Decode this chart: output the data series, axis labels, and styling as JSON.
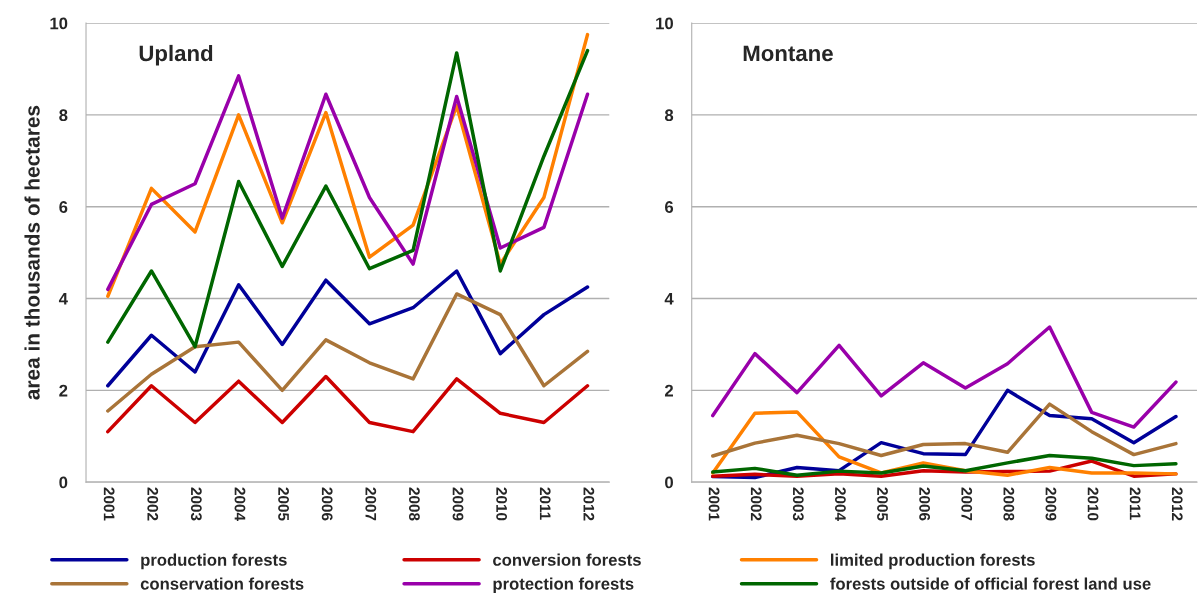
{
  "chart_data": [
    {
      "type": "line",
      "title": "Upland",
      "ylabel": "area in thousands of hectares",
      "categories": [
        "2001",
        "2002",
        "2003",
        "2004",
        "2005",
        "2006",
        "2007",
        "2008",
        "2009",
        "2010",
        "2011",
        "2012"
      ],
      "ylim": [
        0,
        10
      ],
      "yticks": [
        0,
        2,
        4,
        6,
        8,
        10
      ],
      "grid": "y",
      "legend": "bottom",
      "series": [
        {
          "name": "production forests",
          "color": "#000099",
          "values": [
            2.1,
            3.2,
            2.4,
            4.3,
            3.0,
            4.4,
            3.45,
            3.8,
            4.6,
            2.8,
            3.65,
            4.25
          ]
        },
        {
          "name": "conversion forests",
          "color": "#cc0000",
          "values": [
            1.1,
            2.1,
            1.3,
            2.2,
            1.3,
            2.3,
            1.3,
            1.1,
            2.25,
            1.5,
            1.3,
            2.1
          ]
        },
        {
          "name": "limited production forests",
          "color": "#ff8000",
          "values": [
            4.05,
            6.4,
            5.45,
            8.0,
            5.65,
            8.05,
            4.9,
            5.6,
            8.2,
            4.75,
            6.2,
            9.75
          ]
        },
        {
          "name": "conservation forests",
          "color": "#a97438",
          "values": [
            1.55,
            2.35,
            2.95,
            3.05,
            2.0,
            3.1,
            2.6,
            2.25,
            4.1,
            3.65,
            2.1,
            2.85
          ]
        },
        {
          "name": "protection forests",
          "color": "#9900aa",
          "values": [
            4.2,
            6.05,
            6.5,
            8.85,
            5.75,
            8.45,
            6.2,
            4.75,
            8.4,
            5.1,
            5.55,
            8.45
          ]
        },
        {
          "name": "forests outside of official forest land use",
          "color": "#006600",
          "values": [
            3.05,
            4.6,
            2.95,
            6.55,
            4.7,
            6.45,
            4.65,
            5.05,
            9.35,
            4.6,
            7.1,
            9.4
          ]
        }
      ]
    },
    {
      "type": "line",
      "title": "Montane",
      "categories": [
        "2001",
        "2002",
        "2003",
        "2004",
        "2005",
        "2006",
        "2007",
        "2008",
        "2009",
        "2010",
        "2011",
        "2012"
      ],
      "ylim": [
        0,
        10
      ],
      "yticks": [
        0,
        2,
        4,
        6,
        8,
        10
      ],
      "grid": "y",
      "series": [
        {
          "color": "#000099",
          "values": [
            0.12,
            0.1,
            0.32,
            0.25,
            0.86,
            0.62,
            0.6,
            2.0,
            1.45,
            1.38,
            0.86,
            1.43
          ]
        },
        {
          "color": "#cc0000",
          "values": [
            0.13,
            0.17,
            0.13,
            0.18,
            0.13,
            0.25,
            0.22,
            0.23,
            0.24,
            0.46,
            0.13,
            0.18
          ]
        },
        {
          "color": "#ff8000",
          "values": [
            0.2,
            1.5,
            1.53,
            0.55,
            0.2,
            0.42,
            0.25,
            0.15,
            0.32,
            0.2,
            0.2,
            0.18
          ]
        },
        {
          "color": "#a97438",
          "values": [
            0.57,
            0.85,
            1.02,
            0.84,
            0.58,
            0.82,
            0.84,
            0.65,
            1.7,
            1.1,
            0.6,
            0.84
          ]
        },
        {
          "color": "#9900aa",
          "values": [
            1.45,
            2.8,
            1.95,
            2.98,
            1.88,
            2.6,
            2.05,
            2.58,
            3.38,
            1.52,
            1.2,
            2.18
          ]
        },
        {
          "color": "#006600",
          "values": [
            0.22,
            0.3,
            0.15,
            0.24,
            0.2,
            0.35,
            0.25,
            0.42,
            0.58,
            0.52,
            0.36,
            0.4
          ]
        }
      ]
    }
  ]
}
